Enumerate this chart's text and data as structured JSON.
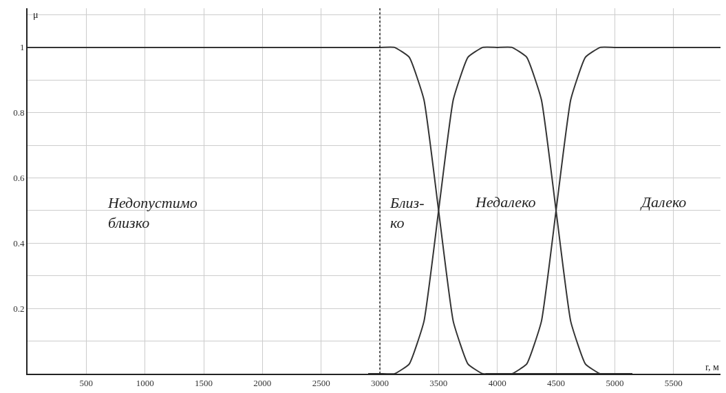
{
  "chart_data": {
    "type": "line",
    "xlabel": "r, м",
    "ylabel": "μ",
    "xlim": [
      0,
      5900
    ],
    "ylim": [
      0,
      1.12
    ],
    "xticks": [
      500,
      1000,
      1500,
      2000,
      2500,
      3000,
      3500,
      4000,
      4500,
      5000,
      5500
    ],
    "yticks": [
      {
        "value": 0.1,
        "label": null
      },
      0.2,
      {
        "value": 0.3,
        "label": null
      },
      0.4,
      {
        "value": 0.5,
        "label": null
      },
      0.6,
      {
        "value": 0.7,
        "label": null
      },
      0.8,
      {
        "value": 0.9,
        "label": null
      },
      1,
      {
        "value": 1.1,
        "label": null
      }
    ],
    "grid": true,
    "marker": "none",
    "line_style": "solid",
    "series": [
      {
        "color": "#333333",
        "x": [
          0,
          3000,
          3125,
          3250,
          3375,
          3500,
          3625,
          3750,
          3875,
          4000,
          5150
        ],
        "values": [
          1,
          1,
          1,
          0.97,
          0.84,
          0.5,
          0.16,
          0.03,
          0,
          0,
          0
        ]
      },
      {
        "color": "#333333",
        "x": [
          2900,
          3000,
          3125,
          3250,
          3375,
          3500,
          3625,
          3750,
          3875,
          4000,
          4125,
          4250,
          4375,
          4500,
          4625,
          4750,
          4875,
          5000,
          5150
        ],
        "values": [
          0,
          0,
          0,
          0.03,
          0.16,
          0.5,
          0.84,
          0.97,
          1,
          1,
          1,
          0.97,
          0.84,
          0.5,
          0.16,
          0.03,
          0,
          0,
          0
        ]
      },
      {
        "color": "#333333",
        "x": [
          3900,
          4000,
          4125,
          4250,
          4375,
          4500,
          4625,
          4750,
          4875,
          5000,
          5900
        ],
        "values": [
          0,
          0,
          0,
          0.03,
          0.16,
          0.5,
          0.84,
          0.97,
          1,
          1,
          1
        ]
      }
    ],
    "ref_lines": [
      {
        "axis": "x",
        "value": 3000,
        "color": "#222222",
        "line_style": "dotted"
      }
    ],
    "annotations": [
      "Недопустимо\nблизко",
      "Близ-\nко",
      "Недалеко",
      "Далеко"
    ]
  }
}
